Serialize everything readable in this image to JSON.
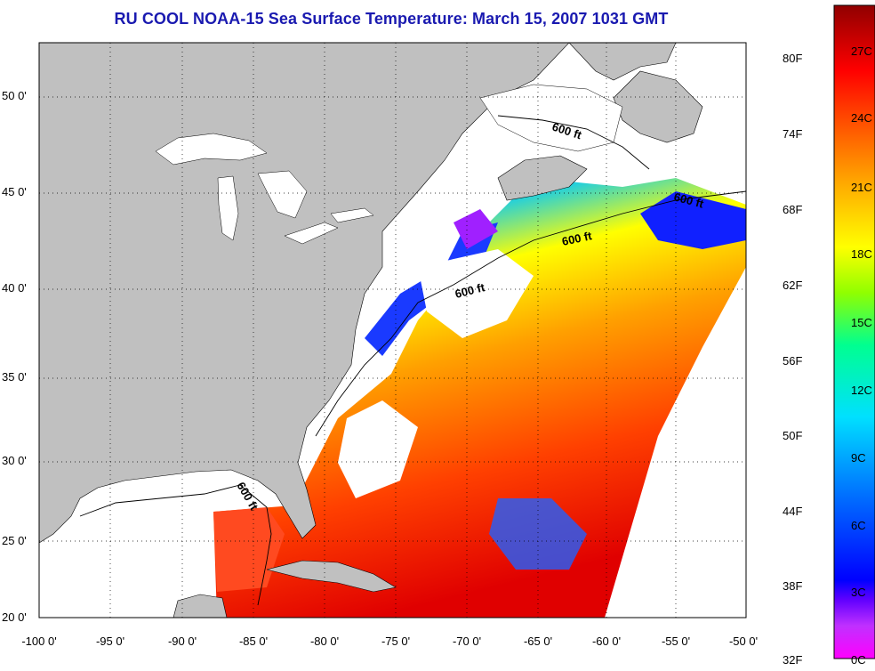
{
  "title": "RU COOL  NOAA-15  Sea Surface Temperature:  March 15, 2007 1031 GMT",
  "lat_labels": [
    "50 0'",
    "45 0'",
    "40 0'",
    "35 0'",
    "30 0'",
    "25 0'",
    "20 0'"
  ],
  "lon_labels": [
    "-100 0'",
    "-95 0'",
    "-90 0'",
    "-85 0'",
    "-80 0'",
    "-75 0'",
    "-70 0'",
    "-65 0'",
    "-60 0'",
    "-55 0'",
    "-50 0'"
  ],
  "isobath_labels": [
    "600 ft",
    "600 ft",
    "600 ft",
    "600 ft",
    "600 ft"
  ],
  "colorbar": {
    "fahrenheit": [
      "80F",
      "74F",
      "68F",
      "62F",
      "56F",
      "50F",
      "44F",
      "38F",
      "32F"
    ],
    "celsius": [
      "27C",
      "24C",
      "21C",
      "18C",
      "15C",
      "12C",
      "9C",
      "6C",
      "3C",
      "0C"
    ]
  },
  "colors": {
    "title": "#1a1ab0",
    "land": "#c0c0c0",
    "ocean_no_data": "#ffffff",
    "scale": [
      "#ff00ff",
      "#8000ff",
      "#0000ff",
      "#0080ff",
      "#00ffff",
      "#00ff80",
      "#80ff00",
      "#ffff00",
      "#ffb000",
      "#ff6000",
      "#ff0000",
      "#a00000"
    ]
  }
}
